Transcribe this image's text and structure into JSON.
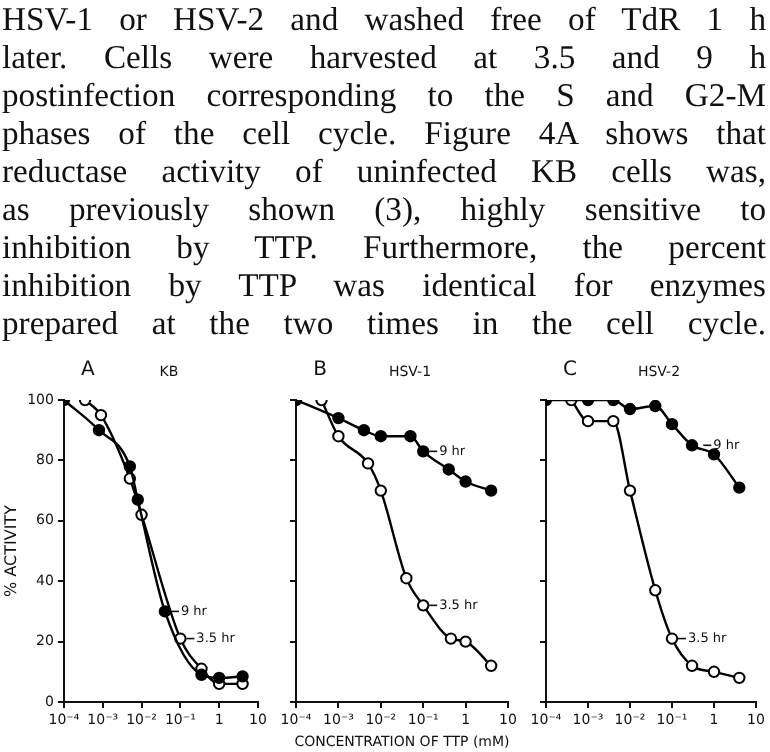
{
  "chart_data": [
    {
      "type": "line",
      "title": "A",
      "subtitle": "KB",
      "ylabel": "% ACTIVITY",
      "annotations": [
        "HSV-1 or HSV-2 and washed free of TdR 1 h\nlater. Cells were harvested at 3.5 and 9 h\npostinfection corresponding to the S and G2-M\nphases of the cell cycle. Figure 4A shows that\nreductase activity of uninfected KB cells was,\nas previously shown (3), highly sensitive to\ninhibition by TTP. Furthermore, the percent\ninhibition by TTP was identical for enzymes\nprepared at the two times in the cell cycle.",
        {
          "text": "9 hr",
          "x": 0.04,
          "y": 30
        },
        {
          "text": "3.5 hr",
          "x": 0.1,
          "y": 21
        }
      ],
      "log": "x",
      "xlim": [
        0.0001,
        10
      ],
      "xticks": [
        {
          "value": 0.0001,
          "label": "10⁻⁴"
        },
        {
          "value": 0.001,
          "label": "10⁻³"
        },
        {
          "value": 0.01,
          "label": "10⁻²"
        },
        {
          "value": 0.1,
          "label": "10⁻¹"
        },
        {
          "value": 1,
          "label": "1"
        },
        {
          "value": 10,
          "label": "10"
        }
      ],
      "ylim": [
        0,
        100
      ],
      "yticks": [
        0,
        20,
        40,
        60,
        80,
        100
      ],
      "grid": false,
      "legend": false,
      "marker": "circle",
      "series": [
        {
          "color": "#000000",
          "x": [
            0.0001,
            0.0008,
            0.005,
            0.008,
            0.04,
            0.35,
            1,
            4
          ],
          "values": [
            100,
            90,
            78,
            67,
            30,
            9,
            8,
            8.5
          ]
        },
        {
          "color": "#000000",
          "colors": [
            "#ffffff",
            "#ffffff",
            "#ffffff",
            "#ffffff",
            "#ffffff",
            "#ffffff",
            "#ffffff",
            "#ffffff"
          ],
          "x": [
            0.00035,
            0.0009,
            0.005,
            0.01,
            0.1,
            0.35,
            1,
            4
          ],
          "values": [
            100,
            95,
            74,
            62,
            21,
            11,
            6,
            6
          ]
        }
      ]
    },
    {
      "type": "line",
      "title": "B",
      "subtitle": "HSV-1",
      "xlabel": "CONCENTRATION OF TTP (mM)",
      "annotations": [
        {
          "text": "9 hr",
          "x": 0.1,
          "y": 83
        },
        {
          "text": "3.5 hr",
          "x": 0.1,
          "y": 32
        }
      ],
      "log": "x",
      "xlim": [
        0.0001,
        10
      ],
      "xticks": [
        {
          "value": 0.0001,
          "label": "10⁻⁴"
        },
        {
          "value": 0.001,
          "label": "10⁻³"
        },
        {
          "value": 0.01,
          "label": "10⁻²"
        },
        {
          "value": 0.1,
          "label": "10⁻¹"
        },
        {
          "value": 1,
          "label": "1"
        },
        {
          "value": 10,
          "label": "10"
        }
      ],
      "ylim": [
        0,
        100
      ],
      "yticks": [
        0,
        20,
        40,
        60,
        80,
        100
      ],
      "tick_labels": "x",
      "grid": false,
      "legend": false,
      "marker": "circle",
      "series": [
        {
          "color": "#000000",
          "x": [
            0.0001,
            0.001,
            0.004,
            0.01,
            0.05,
            0.1,
            0.4,
            1,
            4
          ],
          "values": [
            100,
            94,
            90,
            88,
            88,
            83,
            77,
            73,
            70
          ]
        },
        {
          "color": "#000000",
          "colors": [
            "#ffffff",
            "#ffffff",
            "#ffffff",
            "#ffffff",
            "#ffffff",
            "#ffffff",
            "#ffffff",
            "#ffffff",
            "#ffffff"
          ],
          "x": [
            0.0004,
            0.001,
            0.005,
            0.01,
            0.04,
            0.1,
            0.45,
            1,
            4
          ],
          "values": [
            100,
            88,
            79,
            70,
            41,
            32,
            21,
            20,
            12
          ]
        }
      ]
    },
    {
      "type": "line",
      "title": "C",
      "subtitle": "HSV-2",
      "annotations": [
        {
          "text": "9 hr",
          "x": 0.4,
          "y": 85
        },
        {
          "text": "3.5 hr",
          "x": 0.1,
          "y": 21
        }
      ],
      "log": "x",
      "xlim": [
        0.0001,
        10
      ],
      "xticks": [
        {
          "value": 0.0001,
          "label": "10⁻⁴"
        },
        {
          "value": 0.001,
          "label": "10⁻³"
        },
        {
          "value": 0.01,
          "label": "10⁻²"
        },
        {
          "value": 0.1,
          "label": "10⁻¹"
        },
        {
          "value": 1,
          "label": "1"
        },
        {
          "value": 10,
          "label": "10"
        }
      ],
      "ylim": [
        0,
        100
      ],
      "yticks": [
        0,
        20,
        40,
        60,
        80,
        100
      ],
      "tick_labels": "x",
      "grid": false,
      "legend": false,
      "marker": "circle",
      "series": [
        {
          "color": "#000000",
          "x": [
            0.0001,
            0.001,
            0.004,
            0.01,
            0.04,
            0.1,
            0.3,
            1,
            4
          ],
          "values": [
            100,
            100,
            100,
            97,
            98,
            92,
            85,
            82,
            71
          ]
        },
        {
          "color": "#000000",
          "colors": [
            "#ffffff",
            "#ffffff",
            "#ffffff",
            "#ffffff",
            "#ffffff",
            "#ffffff",
            "#ffffff",
            "#ffffff",
            "#ffffff"
          ],
          "x": [
            0.0004,
            0.001,
            0.004,
            0.01,
            0.04,
            0.1,
            0.3,
            1,
            4
          ],
          "values": [
            100,
            93,
            93,
            70,
            37,
            21,
            12,
            10,
            8
          ]
        }
      ]
    }
  ]
}
